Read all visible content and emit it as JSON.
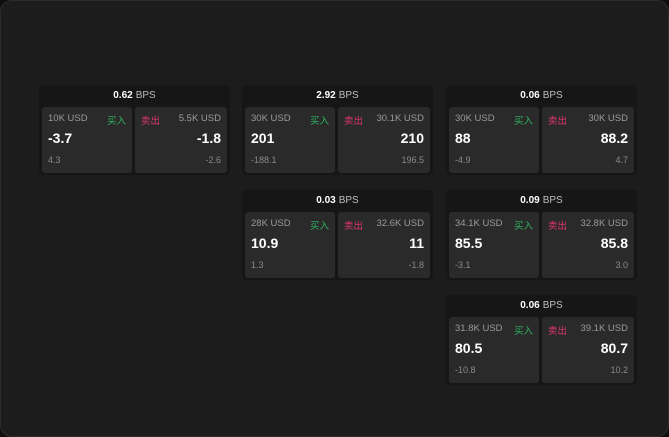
{
  "bps_unit": "BPS",
  "buy_label": "买入",
  "sell_label": "卖出",
  "colors": {
    "buy": "#2fb561",
    "sell": "#e0356d",
    "background": "#1c1c1c"
  },
  "cards": [
    {
      "bps": "0.62",
      "bid": {
        "size": "10K USD",
        "price": "-3.7",
        "change": "4.3"
      },
      "ask": {
        "size": "5.5K USD",
        "price": "-1.8",
        "change": "-2.6"
      }
    },
    {
      "bps": "2.92",
      "bid": {
        "size": "30K USD",
        "price": "201",
        "change": "-188.1"
      },
      "ask": {
        "size": "30.1K USD",
        "price": "210",
        "change": "196.5"
      }
    },
    {
      "bps": "0.06",
      "bid": {
        "size": "30K USD",
        "price": "88",
        "change": "-4.9"
      },
      "ask": {
        "size": "30K USD",
        "price": "88.2",
        "change": "4.7"
      }
    },
    {
      "bps": "0.03",
      "bid": {
        "size": "28K USD",
        "price": "10.9",
        "change": "1.3"
      },
      "ask": {
        "size": "32.6K USD",
        "price": "11",
        "change": "-1.8"
      }
    },
    {
      "bps": "0.09",
      "bid": {
        "size": "34.1K USD",
        "price": "85.5",
        "change": "-3.1"
      },
      "ask": {
        "size": "32.8K USD",
        "price": "85.8",
        "change": "3.0"
      }
    },
    {
      "bps": "0.06",
      "bid": {
        "size": "31.8K USD",
        "price": "80.5",
        "change": "-10.8"
      },
      "ask": {
        "size": "39.1K USD",
        "price": "80.7",
        "change": "10.2"
      }
    }
  ]
}
